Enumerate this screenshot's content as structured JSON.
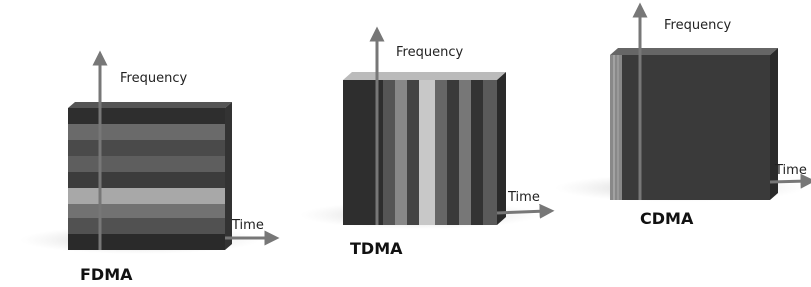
{
  "diagrams": [
    {
      "title": "FDMA",
      "y_axis": "Frequency",
      "x_axis": "Time"
    },
    {
      "title": "TDMA",
      "y_axis": "Frequency",
      "x_axis": "Time"
    },
    {
      "title": "CDMA",
      "y_axis": "Frequency",
      "x_axis": "Time"
    }
  ]
}
